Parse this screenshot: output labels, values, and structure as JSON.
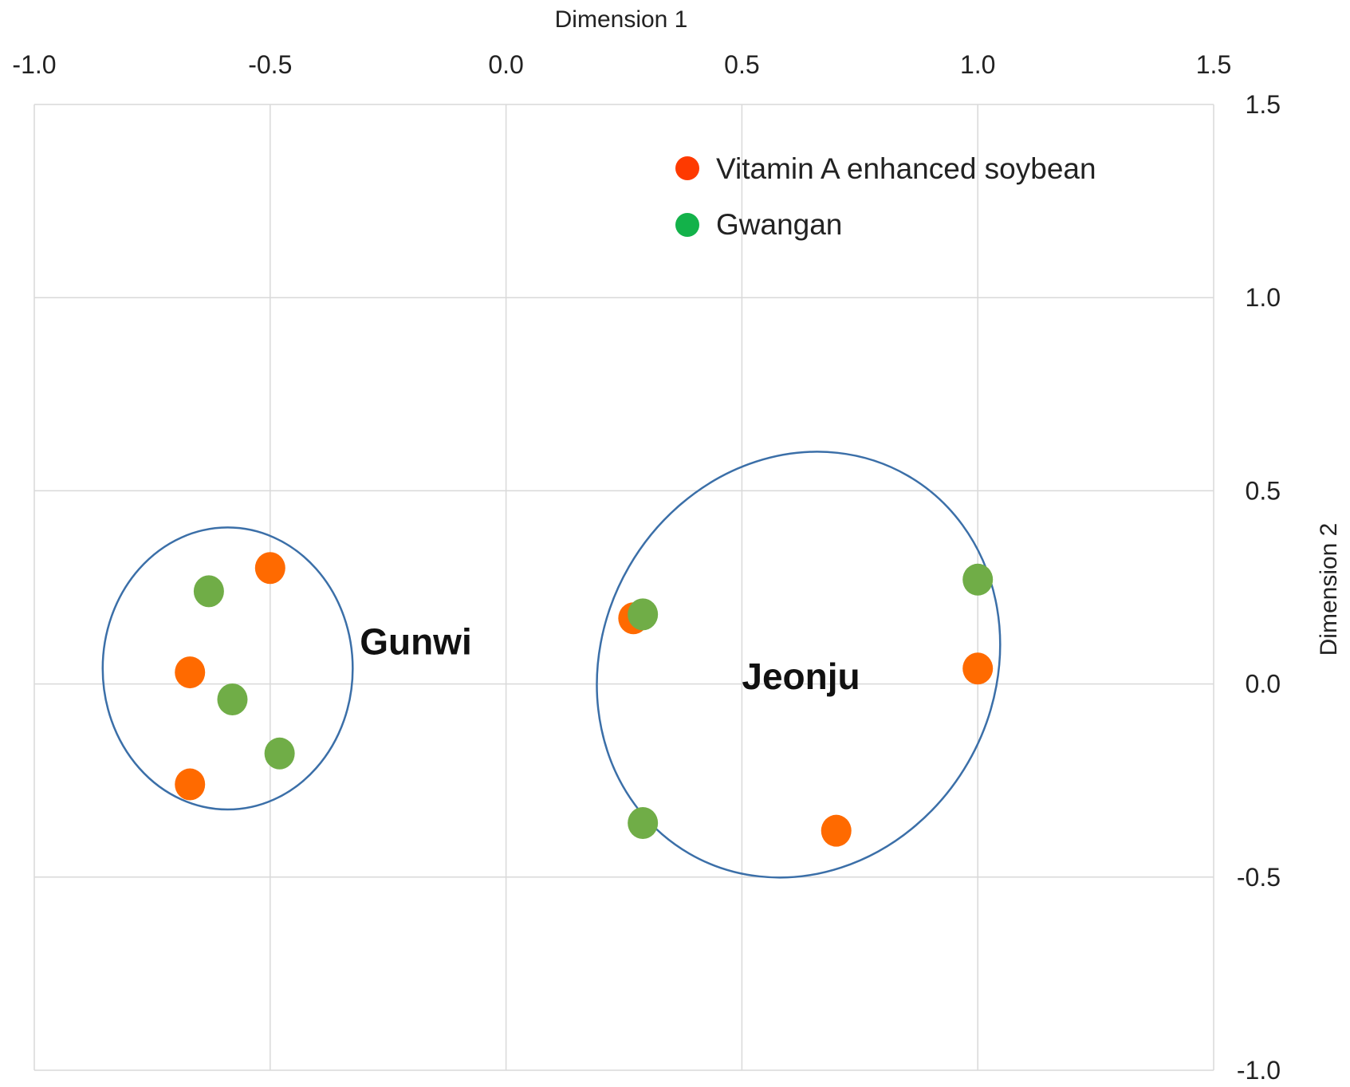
{
  "chart_data": {
    "type": "scatter",
    "title": "",
    "xlabel": "Dimension 1",
    "ylabel": "Dimension 2",
    "x_axis_position": "top",
    "y_axis_position": "right",
    "xlim": [
      -1.0,
      1.5
    ],
    "ylim": [
      -1.0,
      1.5
    ],
    "x_ticks": [
      "-1.0",
      "-0.5",
      "0.0",
      "0.5",
      "1.0",
      "1.5"
    ],
    "y_ticks": [
      "1.5",
      "1.0",
      "0.5",
      "0.0",
      "-0.5",
      "-1.0"
    ],
    "grid": true,
    "legend_position": "top-right",
    "series": [
      {
        "name": "Vitamin A enhanced soybean",
        "legend_color": "#fe3a00",
        "marker_color": "#ff6a00",
        "points": [
          {
            "x": -0.5,
            "y": 0.3
          },
          {
            "x": -0.67,
            "y": 0.03
          },
          {
            "x": -0.67,
            "y": -0.26
          },
          {
            "x": 0.27,
            "y": 0.17
          },
          {
            "x": 1.0,
            "y": 0.04
          },
          {
            "x": 0.7,
            "y": -0.38
          }
        ]
      },
      {
        "name": "Gwangan",
        "legend_color": "#13b24a",
        "marker_color": "#70ad47",
        "points": [
          {
            "x": -0.63,
            "y": 0.24
          },
          {
            "x": -0.58,
            "y": -0.04
          },
          {
            "x": -0.48,
            "y": -0.18
          },
          {
            "x": 0.29,
            "y": 0.18
          },
          {
            "x": 1.0,
            "y": 0.27
          },
          {
            "x": 0.29,
            "y": -0.36
          }
        ]
      }
    ],
    "groups": [
      {
        "label": "Gunwi",
        "ellipse": {
          "cx": -0.59,
          "cy": 0.04,
          "rx": 0.265,
          "ry": 0.365,
          "rotation": 0
        }
      },
      {
        "label": "Jeonju",
        "ellipse": {
          "cx": 0.62,
          "cy": 0.05,
          "rx": 0.415,
          "ry": 0.565,
          "rotation": 30
        }
      }
    ],
    "colors": {
      "cluster_outline": "#3b6fa8",
      "grid": "#d9d9d9"
    }
  }
}
